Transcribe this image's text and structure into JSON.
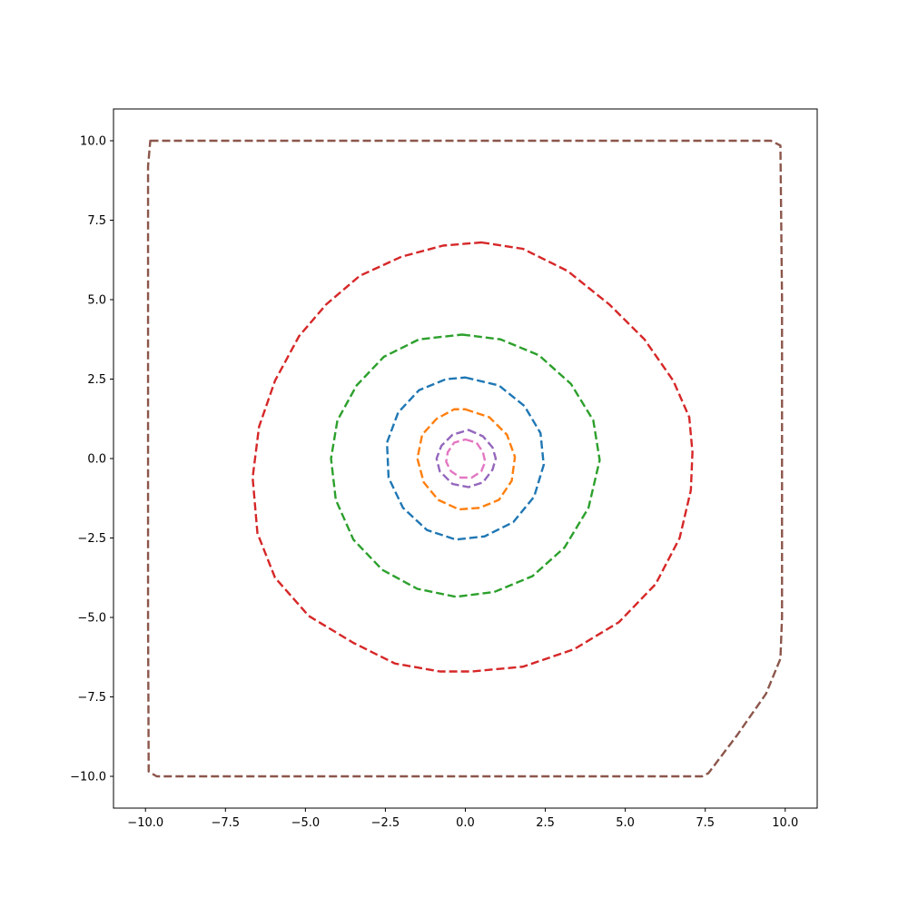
{
  "chart_data": {
    "type": "line",
    "title": "",
    "xlabel": "",
    "ylabel": "",
    "xlim": [
      -11,
      11
    ],
    "ylim": [
      -11,
      11
    ],
    "grid": false,
    "legend": "none",
    "line_style": "dashed",
    "x_ticks": [
      -10.0,
      -7.5,
      -5.0,
      -2.5,
      0.0,
      2.5,
      5.0,
      7.5,
      10.0
    ],
    "y_ticks": [
      -10.0,
      -7.5,
      -5.0,
      -2.5,
      0.0,
      2.5,
      5.0,
      7.5,
      10.0
    ],
    "x_tick_labels": [
      "−10.0",
      "−7.5",
      "−5.0",
      "−2.5",
      "0.0",
      "2.5",
      "5.0",
      "7.5",
      "10.0"
    ],
    "y_tick_labels": [
      "−10.0",
      "−7.5",
      "−5.0",
      "−2.5",
      "0.0",
      "2.5",
      "5.0",
      "7.5",
      "10.0"
    ],
    "series": [
      {
        "color": "#e377c2",
        "closed": true,
        "x": [
          0.0,
          0.35,
          0.55,
          0.62,
          0.5,
          0.2,
          -0.15,
          -0.45,
          -0.6,
          -0.55,
          -0.35,
          0.0
        ],
        "y": [
          0.6,
          0.5,
          0.2,
          -0.1,
          -0.4,
          -0.6,
          -0.6,
          -0.4,
          -0.1,
          0.2,
          0.5,
          0.6
        ]
      },
      {
        "color": "#9467bd",
        "closed": true,
        "x": [
          0.1,
          0.55,
          0.85,
          0.95,
          0.85,
          0.55,
          0.1,
          -0.4,
          -0.8,
          -0.9,
          -0.75,
          -0.4,
          0.1
        ],
        "y": [
          0.9,
          0.7,
          0.35,
          0.0,
          -0.35,
          -0.75,
          -0.9,
          -0.8,
          -0.4,
          0.0,
          0.4,
          0.75,
          0.9
        ]
      },
      {
        "color": "#ff7f0e",
        "closed": true,
        "x": [
          0.0,
          0.75,
          1.3,
          1.55,
          1.45,
          1.05,
          0.45,
          -0.2,
          -0.85,
          -1.3,
          -1.5,
          -1.35,
          -0.9,
          -0.35,
          0.0
        ],
        "y": [
          1.55,
          1.3,
          0.75,
          0.05,
          -0.7,
          -1.3,
          -1.55,
          -1.6,
          -1.3,
          -0.75,
          0.0,
          0.75,
          1.25,
          1.55,
          1.55
        ]
      },
      {
        "color": "#1f77b4",
        "closed": true,
        "x": [
          0.0,
          1.05,
          1.85,
          2.35,
          2.45,
          2.15,
          1.5,
          0.6,
          -0.3,
          -1.2,
          -1.95,
          -2.4,
          -2.45,
          -2.1,
          -1.45,
          -0.6,
          0.0
        ],
        "y": [
          2.55,
          2.3,
          1.65,
          0.8,
          -0.2,
          -1.2,
          -2.0,
          -2.45,
          -2.55,
          -2.25,
          -1.55,
          -0.6,
          0.5,
          1.45,
          2.15,
          2.5,
          2.55
        ]
      },
      {
        "color": "#2ca02c",
        "closed": true,
        "x": [
          -0.1,
          1.1,
          2.3,
          3.3,
          4.0,
          4.2,
          3.85,
          3.1,
          2.1,
          0.9,
          -0.3,
          -1.5,
          -2.6,
          -3.5,
          -4.05,
          -4.2,
          -4.0,
          -3.4,
          -2.55,
          -1.45,
          -0.1
        ],
        "y": [
          3.9,
          3.75,
          3.25,
          2.35,
          1.2,
          -0.05,
          -1.55,
          -2.8,
          -3.7,
          -4.2,
          -4.35,
          -4.1,
          -3.5,
          -2.55,
          -1.3,
          0.0,
          1.2,
          2.3,
          3.2,
          3.75,
          3.9
        ]
      },
      {
        "color": "#d62728",
        "closed": true,
        "x": [
          0.5,
          1.8,
          3.2,
          4.5,
          5.6,
          6.5,
          7.0,
          7.1,
          7.05,
          6.7,
          5.95,
          4.8,
          3.4,
          1.8,
          0.2,
          -0.8,
          -2.2,
          -3.5,
          -4.9,
          -5.95,
          -6.5,
          -6.65,
          -6.45,
          -5.95,
          -5.2,
          -4.35,
          -3.3,
          -2.0,
          -0.7,
          0.5
        ],
        "y": [
          6.8,
          6.6,
          5.9,
          4.85,
          3.75,
          2.45,
          1.3,
          0.2,
          -1.0,
          -2.5,
          -3.95,
          -5.15,
          -6.0,
          -6.55,
          -6.7,
          -6.7,
          -6.45,
          -5.8,
          -4.95,
          -3.75,
          -2.35,
          -0.6,
          1.0,
          2.45,
          3.85,
          4.85,
          5.75,
          6.35,
          6.7,
          6.8
        ]
      },
      {
        "color": "#8c564b",
        "closed": true,
        "x": [
          -9.85,
          -2.0,
          5.0,
          9.55,
          9.85,
          9.9,
          9.9,
          9.9,
          9.85,
          9.4,
          8.5,
          7.6,
          7.4,
          5.0,
          -2.0,
          -9.65,
          -9.9,
          -9.92,
          -9.92,
          -9.92,
          -9.85
        ],
        "y": [
          10.0,
          10.0,
          10.0,
          10.0,
          9.85,
          5.0,
          0.0,
          -5.0,
          -6.3,
          -7.4,
          -8.7,
          -9.9,
          -10.0,
          -10.0,
          -10.0,
          -10.0,
          -9.85,
          -5.0,
          0.0,
          9.2,
          10.0
        ]
      }
    ]
  }
}
